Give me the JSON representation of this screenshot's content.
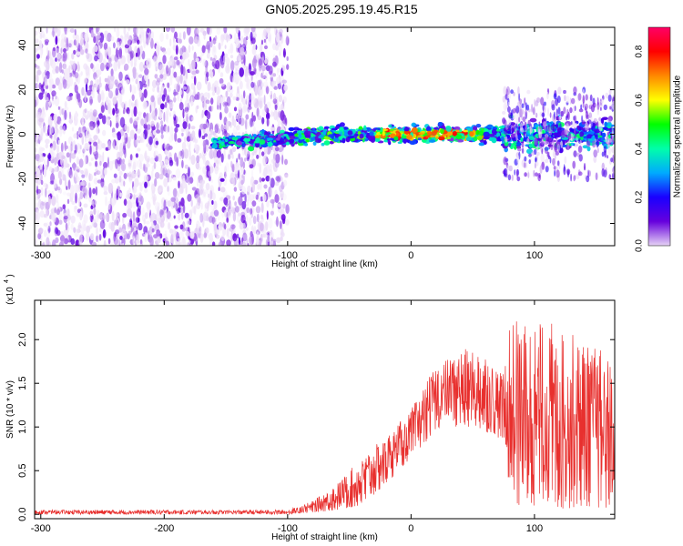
{
  "title": "GN05.2025.295.19.45.R15",
  "chart_data": [
    {
      "type": "heatmap",
      "xlabel": "Height of straight line (km)",
      "ylabel": "Frequency (Hz)",
      "xlim": [
        -305,
        165
      ],
      "ylim": [
        -50,
        48
      ],
      "xticks": [
        -300,
        -200,
        -100,
        0,
        100
      ],
      "yticks": [
        -40,
        -20,
        0,
        20,
        40
      ],
      "colorbar": {
        "label": "Normalized spectral amplitude",
        "range": [
          0.0,
          0.9
        ],
        "ticks": [
          0.0,
          0.2,
          0.4,
          0.6,
          0.8
        ],
        "colormap": [
          "#ffffff",
          "#e6d3f5",
          "#6600dd",
          "#1a00ff",
          "#00aaff",
          "#00ffaa",
          "#00ff00",
          "#ffff00",
          "#ff8800",
          "#ff0000",
          "#ff0066"
        ]
      },
      "regions": [
        {
          "x_range": [
            -305,
            -100
          ],
          "y_range": [
            -50,
            48
          ],
          "amplitude": "low",
          "description_value": 0.05
        },
        {
          "x_range": [
            -160,
            165
          ],
          "y_center": 0,
          "y_halfwidth": 5,
          "amplitude_peak": 0.85,
          "peak_x_range": [
            -30,
            60
          ]
        }
      ],
      "grid": false
    },
    {
      "type": "line",
      "xlabel": "Height of straight line (km)",
      "ylabel": "SNR (10 * v/v)",
      "scale_note": "(x10",
      "scale_exp": "4",
      "scale_close": ")",
      "xlim": [
        -305,
        165
      ],
      "ylim": [
        -0.05,
        2.45
      ],
      "xticks": [
        -300,
        -200,
        -100,
        0,
        100
      ],
      "yticks": [
        "0.0",
        "0.5",
        "1.0",
        "1.5",
        "2.0"
      ],
      "color": "#e8302e",
      "envelope": {
        "x": [
          -305,
          -200,
          -100,
          -80,
          -60,
          -40,
          -20,
          0,
          20,
          40,
          60,
          75,
          80,
          100,
          120,
          140,
          165
        ],
        "y_upper": [
          0.05,
          0.05,
          0.05,
          0.15,
          0.35,
          0.65,
          0.9,
          1.2,
          1.7,
          1.9,
          1.85,
          1.6,
          2.3,
          2.2,
          2.2,
          2.0,
          1.8
        ],
        "y_lower": [
          0.0,
          0.0,
          0.0,
          0.02,
          0.05,
          0.1,
          0.35,
          0.65,
          0.95,
          1.0,
          0.95,
          0.85,
          0.1,
          0.1,
          0.05,
          0.1,
          0.05
        ]
      },
      "grid": false
    }
  ]
}
